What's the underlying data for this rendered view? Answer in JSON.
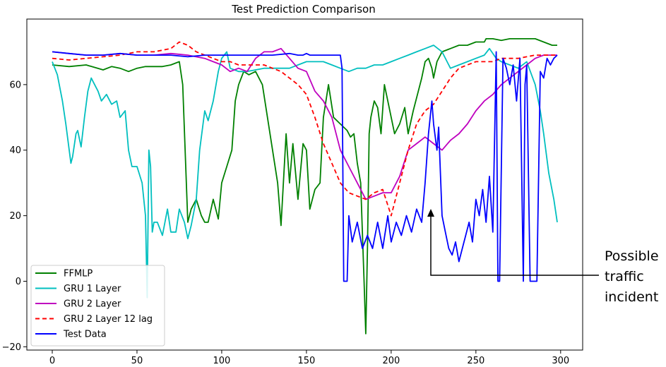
{
  "chart_data": {
    "type": "line",
    "title": "Test Prediction Comparison",
    "xlabel": "",
    "ylabel": "",
    "xlim": [
      -15,
      313
    ],
    "ylim": [
      -21,
      80
    ],
    "xticks": [
      0,
      50,
      100,
      150,
      200,
      250,
      300
    ],
    "yticks": [
      -20,
      0,
      20,
      40,
      60
    ],
    "grid": false,
    "legend": "lower-left",
    "annotation": {
      "text_lines": [
        "Possible",
        "traffic",
        "incident"
      ],
      "arrow_target": [
        224,
        22
      ]
    },
    "series": [
      {
        "name": "FFMLP",
        "color": "#008000",
        "dash": false,
        "x": [
          0,
          10,
          20,
          30,
          35,
          40,
          45,
          50,
          55,
          60,
          65,
          70,
          75,
          77,
          80,
          82,
          85,
          88,
          90,
          92,
          95,
          98,
          100,
          103,
          106,
          108,
          110,
          113,
          116,
          120,
          124,
          127,
          130,
          133,
          135,
          138,
          140,
          142,
          145,
          148,
          150,
          152,
          155,
          158,
          160,
          163,
          166,
          170,
          174,
          176,
          178,
          180,
          182,
          184,
          185,
          186,
          187,
          188,
          190,
          192,
          194,
          196,
          198,
          200,
          202,
          205,
          208,
          210,
          213,
          216,
          218,
          220,
          222,
          224,
          225,
          227,
          230,
          235,
          240,
          245,
          250,
          255,
          256,
          260,
          265,
          270,
          275,
          280,
          285,
          290,
          295,
          298
        ],
        "y": [
          66,
          65.5,
          66,
          64.5,
          65.5,
          65,
          64,
          65,
          65.5,
          65.5,
          65.5,
          66,
          67,
          60,
          18,
          22,
          25,
          20,
          18,
          18,
          25,
          19,
          30,
          35,
          40,
          55,
          60,
          64,
          63,
          64,
          60,
          50,
          40,
          30,
          17,
          45,
          30,
          42,
          25,
          42,
          40,
          22,
          28,
          30,
          50,
          60,
          50,
          48,
          46,
          44,
          45,
          36,
          30,
          0,
          -16,
          10,
          45,
          50,
          55,
          53,
          45,
          60,
          55,
          50,
          45,
          48,
          53,
          45,
          52,
          58,
          62,
          67,
          68,
          65,
          62,
          67,
          70,
          71,
          72,
          72,
          73,
          73,
          74,
          74,
          73.5,
          74,
          74,
          74,
          74,
          73,
          72,
          72
        ]
      },
      {
        "name": "GRU 1 Layer",
        "color": "#00BFBF",
        "dash": false,
        "x": [
          0,
          3,
          6,
          8,
          10,
          11,
          12,
          14,
          15,
          17,
          19,
          21,
          23,
          25,
          27,
          29,
          32,
          35,
          38,
          40,
          43,
          45,
          47,
          50,
          53,
          55,
          56,
          57,
          58,
          59,
          60,
          62,
          65,
          68,
          70,
          73,
          75,
          78,
          80,
          82,
          85,
          87,
          90,
          92,
          95,
          98,
          100,
          103,
          105,
          110,
          115,
          120,
          125,
          130,
          135,
          140,
          145,
          150,
          155,
          160,
          165,
          170,
          175,
          180,
          185,
          190,
          195,
          200,
          205,
          210,
          215,
          220,
          225,
          230,
          235,
          240,
          245,
          250,
          255,
          258,
          262,
          265,
          270,
          275,
          280,
          285,
          288,
          290,
          293,
          296,
          298
        ],
        "y": [
          67,
          63,
          55,
          48,
          40,
          36,
          38,
          45,
          46,
          41,
          50,
          58,
          62,
          60,
          58,
          55,
          57,
          54,
          55,
          50,
          52,
          40,
          35,
          35,
          30,
          20,
          -5,
          40,
          35,
          15,
          18,
          18,
          14,
          22,
          15,
          15,
          22,
          18,
          13,
          17,
          25,
          40,
          52,
          49,
          55,
          64,
          68,
          70,
          65,
          64,
          64,
          64.5,
          65,
          65,
          65,
          65,
          66,
          67,
          67,
          67,
          66,
          65,
          64,
          65,
          65,
          66,
          66,
          67,
          68,
          69,
          70,
          71,
          72,
          70,
          65,
          66,
          67,
          68,
          69,
          71,
          68,
          67,
          66,
          65,
          67,
          60,
          52,
          45,
          33,
          25,
          18
        ]
      },
      {
        "name": "GRU 2 Layer",
        "color": "#BF00BF",
        "dash": false,
        "x": [
          0,
          10,
          20,
          30,
          40,
          50,
          60,
          70,
          80,
          90,
          95,
          100,
          105,
          110,
          115,
          120,
          125,
          130,
          135,
          140,
          145,
          150,
          155,
          160,
          165,
          170,
          175,
          180,
          185,
          190,
          195,
          200,
          205,
          210,
          215,
          220,
          225,
          230,
          235,
          240,
          245,
          250,
          255,
          260,
          265,
          270,
          275,
          280,
          285,
          290,
          295,
          298
        ],
        "y": [
          70,
          69.5,
          69,
          69,
          69.5,
          69,
          69,
          69.5,
          69,
          68,
          67,
          66,
          64,
          65,
          64,
          68,
          70,
          70,
          71,
          68,
          65,
          64,
          58,
          55,
          50,
          40,
          35,
          30,
          25,
          26,
          27,
          27,
          32,
          40,
          42,
          44,
          42,
          40,
          43,
          45,
          48,
          52,
          55,
          57,
          60,
          62,
          64,
          66,
          68,
          69,
          69,
          69
        ]
      },
      {
        "name": "GRU 2 Layer 12 lag",
        "color": "#FF0000",
        "dash": true,
        "x": [
          0,
          10,
          20,
          30,
          40,
          50,
          60,
          65,
          70,
          75,
          80,
          85,
          90,
          95,
          100,
          105,
          110,
          115,
          120,
          125,
          130,
          135,
          140,
          145,
          150,
          155,
          160,
          165,
          170,
          175,
          180,
          185,
          190,
          195,
          200,
          205,
          210,
          215,
          220,
          225,
          230,
          235,
          240,
          245,
          250,
          255,
          260,
          265,
          270,
          275,
          280,
          285,
          290,
          295,
          298
        ],
        "y": [
          68,
          67.5,
          68,
          68.5,
          69,
          70,
          70,
          70.5,
          71,
          73,
          72,
          70,
          69,
          68,
          67,
          67,
          66,
          66,
          66,
          66,
          65,
          64,
          62,
          60,
          57,
          50,
          42,
          36,
          30,
          27,
          26,
          25,
          27,
          28,
          20,
          30,
          40,
          48,
          52,
          54,
          58,
          62,
          65,
          66,
          67,
          67,
          67,
          68,
          68,
          68,
          68.5,
          69,
          69,
          69,
          69
        ]
      },
      {
        "name": "Test Data",
        "color": "#0000FF",
        "dash": false,
        "x": [
          0,
          10,
          20,
          30,
          40,
          50,
          60,
          70,
          80,
          90,
          100,
          110,
          120,
          130,
          140,
          145,
          148,
          150,
          152,
          155,
          160,
          165,
          170,
          171,
          172,
          174,
          175,
          177,
          180,
          183,
          186,
          189,
          192,
          195,
          198,
          200,
          203,
          206,
          209,
          212,
          215,
          218,
          220,
          222,
          224,
          225,
          227,
          228,
          230,
          232,
          234,
          236,
          238,
          240,
          242,
          244,
          246,
          248,
          250,
          252,
          254,
          256,
          258,
          260,
          262,
          263,
          264,
          266,
          268,
          270,
          272,
          274,
          276,
          278,
          279,
          280,
          282,
          284,
          285,
          286,
          288,
          290,
          292,
          294,
          296,
          298
        ],
        "y": [
          70,
          69.5,
          69,
          69,
          69.5,
          69,
          69,
          69,
          68.5,
          69,
          69,
          69,
          69,
          69,
          69.5,
          69,
          69,
          69.5,
          69,
          69,
          69,
          69,
          69,
          65,
          0,
          0,
          20,
          12,
          18,
          10,
          14,
          10,
          18,
          10,
          20,
          12,
          18,
          14,
          20,
          15,
          22,
          18,
          30,
          45,
          55,
          48,
          40,
          47,
          20,
          15,
          10,
          8,
          12,
          6,
          10,
          14,
          18,
          12,
          25,
          20,
          28,
          18,
          32,
          15,
          70,
          0,
          0,
          68,
          65,
          60,
          66,
          55,
          68,
          0,
          60,
          66,
          0,
          0,
          0,
          0,
          64,
          62,
          68,
          66,
          68,
          69
        ]
      }
    ]
  }
}
